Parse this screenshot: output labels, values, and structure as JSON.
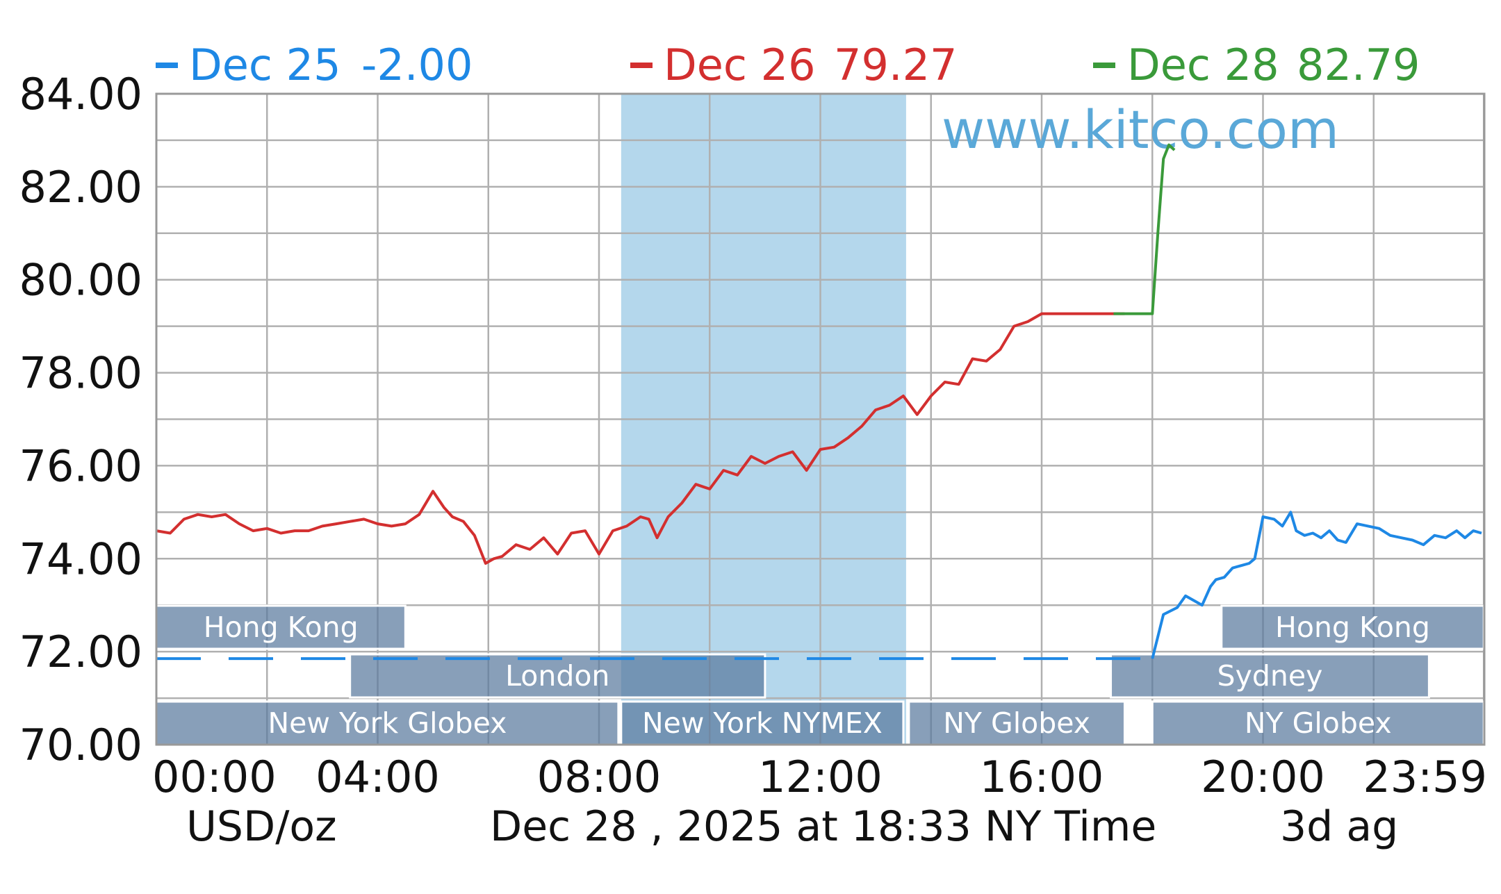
{
  "chart_data": {
    "type": "line",
    "x_unit": "NY time (hours)",
    "ylim": [
      70,
      84
    ],
    "xlim": [
      "00:00",
      "23:59"
    ],
    "y_ticks": [
      "84.00",
      "82.00",
      "80.00",
      "78.00",
      "76.00",
      "74.00",
      "72.00",
      "70.00"
    ],
    "x_ticks": [
      "00:00",
      "04:00",
      "08:00",
      "12:00",
      "16:00",
      "20:00",
      "23:59"
    ],
    "grid": true,
    "legend_position": "top",
    "legend": [
      {
        "date": "Dec 25",
        "value": "-2.00",
        "color": "#1e88e5"
      },
      {
        "date": "Dec 26",
        "value": "79.27",
        "color": "#d32f2f"
      },
      {
        "date": "Dec 28",
        "value": "82.79",
        "color": "#3a9a3a"
      }
    ],
    "watermark": "www.kitco.com",
    "footer": {
      "unit": "USD/oz",
      "timestamp": "Dec 28 , 2025 at 18:33 NY Time",
      "note": "3d ag"
    },
    "highlight_band": {
      "from": 8.4,
      "to": 13.55,
      "color": "#b4d7ec"
    },
    "sessions": [
      {
        "label": "Hong Kong",
        "from": 0.0,
        "to": 4.5,
        "row": 1
      },
      {
        "label": "London",
        "from": 3.5,
        "to": 11.0,
        "row": 2
      },
      {
        "label": "New York Globex",
        "from": 0.0,
        "to": 8.35,
        "row": 3
      },
      {
        "label": "New York NYMEX",
        "from": 8.4,
        "to": 13.5,
        "row": 3
      },
      {
        "label": "NY Globex",
        "from": 13.6,
        "to": 17.5,
        "row": 3
      },
      {
        "label": "Hong Kong",
        "from": 19.25,
        "to": 23.99,
        "row": 1
      },
      {
        "label": "Sydney",
        "from": 17.25,
        "to": 23.0,
        "row": 2
      },
      {
        "label": "NY Globex",
        "from": 18.0,
        "to": 23.99,
        "row": 3
      }
    ],
    "series": [
      {
        "name": "Dec 25",
        "color": "#1e88e5",
        "dashed_segment": {
          "y": 71.85,
          "from": 0.0,
          "to": 18.0
        },
        "x": [
          18.0,
          18.2,
          18.45,
          18.6,
          18.75,
          18.9,
          19.05,
          19.15,
          19.3,
          19.45,
          19.6,
          19.75,
          19.85,
          20.0,
          20.2,
          20.35,
          20.5,
          20.6,
          20.75,
          20.9,
          21.05,
          21.2,
          21.35,
          21.5,
          21.7,
          21.9,
          22.1,
          22.3,
          22.5,
          22.7,
          22.9,
          23.1,
          23.3,
          23.5,
          23.65,
          23.8,
          23.95
        ],
        "y": [
          71.85,
          72.8,
          72.95,
          73.2,
          73.1,
          73.0,
          73.4,
          73.55,
          73.6,
          73.8,
          73.85,
          73.9,
          74.0,
          74.9,
          74.85,
          74.7,
          75.0,
          74.6,
          74.5,
          74.55,
          74.45,
          74.6,
          74.4,
          74.35,
          74.75,
          74.7,
          74.65,
          74.5,
          74.45,
          74.4,
          74.3,
          74.5,
          74.45,
          74.6,
          74.45,
          74.6,
          74.55
        ]
      },
      {
        "name": "Dec 26",
        "color": "#d32f2f",
        "x": [
          0.0,
          0.25,
          0.5,
          0.75,
          1.0,
          1.25,
          1.5,
          1.75,
          2.0,
          2.25,
          2.5,
          2.75,
          3.0,
          3.25,
          3.5,
          3.75,
          4.0,
          4.25,
          4.5,
          4.75,
          5.0,
          5.2,
          5.35,
          5.55,
          5.75,
          5.95,
          6.1,
          6.25,
          6.5,
          6.75,
          7.0,
          7.25,
          7.5,
          7.75,
          8.0,
          8.25,
          8.5,
          8.75,
          8.9,
          9.05,
          9.25,
          9.5,
          9.75,
          10.0,
          10.25,
          10.5,
          10.75,
          11.0,
          11.25,
          11.5,
          11.75,
          12.0,
          12.25,
          12.5,
          12.75,
          13.0,
          13.25,
          13.5,
          13.75,
          14.0,
          14.25,
          14.5,
          14.75,
          15.0,
          15.25,
          15.5,
          15.75,
          16.0,
          16.25,
          16.5,
          16.75,
          17.0,
          17.25,
          17.5
        ],
        "y": [
          74.6,
          74.55,
          74.85,
          74.95,
          74.9,
          74.95,
          74.75,
          74.6,
          74.65,
          74.55,
          74.6,
          74.6,
          74.7,
          74.75,
          74.8,
          74.85,
          74.75,
          74.7,
          74.75,
          74.95,
          75.45,
          75.1,
          74.9,
          74.8,
          74.5,
          73.9,
          74.0,
          74.05,
          74.3,
          74.2,
          74.45,
          74.1,
          74.55,
          74.6,
          74.1,
          74.6,
          74.7,
          74.9,
          74.85,
          74.45,
          74.9,
          75.2,
          75.6,
          75.5,
          75.9,
          75.8,
          76.2,
          76.05,
          76.2,
          76.3,
          75.9,
          76.35,
          76.4,
          76.6,
          76.85,
          77.2,
          77.3,
          77.5,
          77.1,
          77.5,
          77.8,
          77.75,
          78.3,
          78.25,
          78.5,
          79.0,
          79.1,
          79.27,
          79.27,
          79.27,
          79.27,
          79.27,
          79.27,
          79.27
        ]
      },
      {
        "name": "Dec 28",
        "color": "#3a9a3a",
        "x": [
          17.3,
          17.5,
          17.75,
          18.0,
          18.0,
          18.1,
          18.2,
          18.3,
          18.4
        ],
        "y": [
          79.27,
          79.27,
          79.27,
          79.27,
          79.27,
          81.0,
          82.6,
          82.9,
          82.79
        ]
      }
    ]
  }
}
